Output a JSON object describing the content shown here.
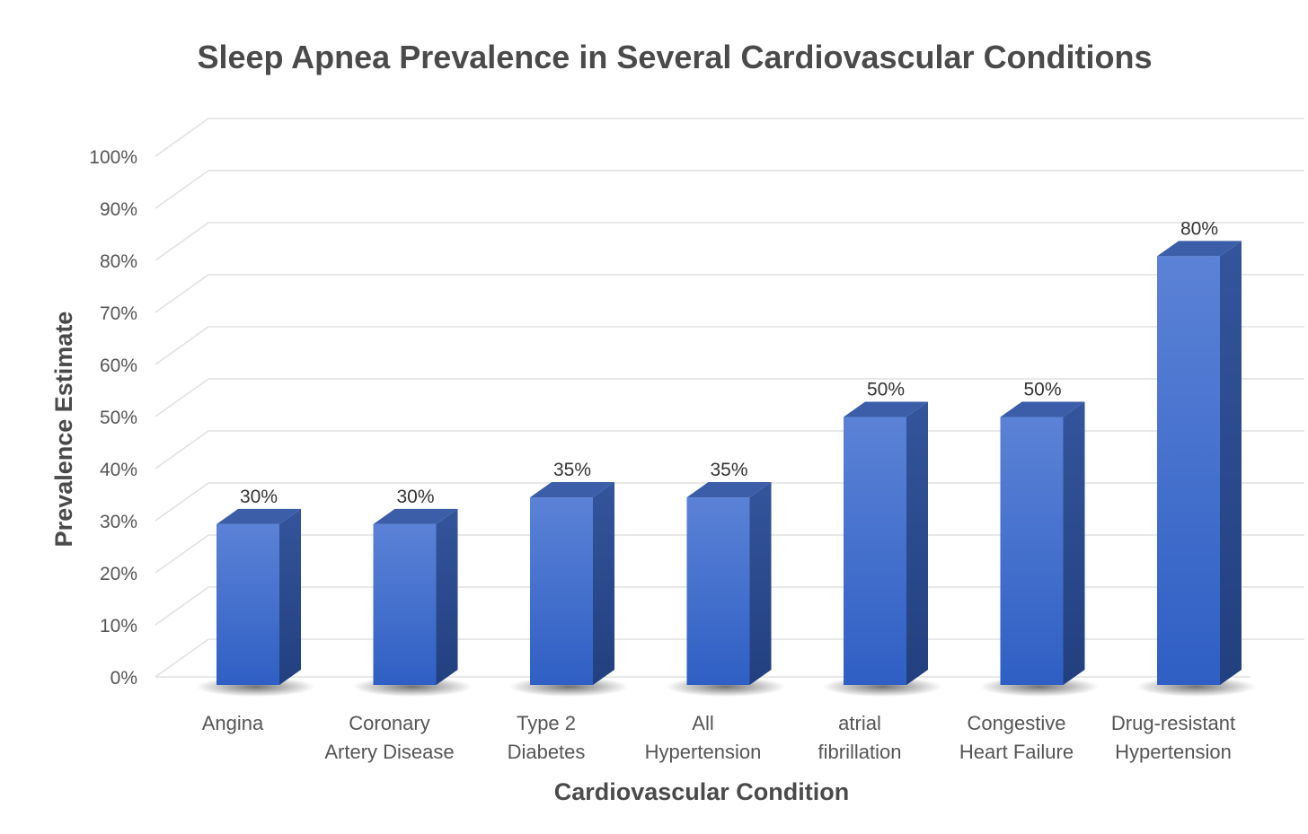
{
  "chart_data": {
    "type": "bar",
    "title": "Sleep Apnea Prevalence in Several Cardiovascular Conditions",
    "xlabel": "Cardiovascular Condition",
    "ylabel": "Prevalence Estimate",
    "categories": [
      [
        "Angina"
      ],
      [
        "Coronary",
        "Artery Disease"
      ],
      [
        "Type 2",
        "Diabetes"
      ],
      [
        "All",
        "Hypertension"
      ],
      [
        "atrial",
        "fibrillation"
      ],
      [
        "Congestive",
        "Heart Failure"
      ],
      [
        "Drug-resistant",
        "Hypertension"
      ]
    ],
    "values": [
      30,
      30,
      35,
      35,
      50,
      50,
      80
    ],
    "data_labels": [
      "30%",
      "30%",
      "35%",
      "35%",
      "50%",
      "50%",
      "80%"
    ],
    "ylim": [
      0,
      100
    ],
    "yticks": [
      "0%",
      "10%",
      "20%",
      "30%",
      "40%",
      "50%",
      "60%",
      "70%",
      "80%",
      "90%",
      "100%"
    ],
    "grid": true,
    "legend": "none",
    "style": "3d-column",
    "colors": {
      "bar_front_top": "#5b82d6",
      "bar_front_bottom": "#2f5fc4",
      "bar_side": "#2a4a93",
      "bar_top": "#3c5ea8"
    }
  }
}
